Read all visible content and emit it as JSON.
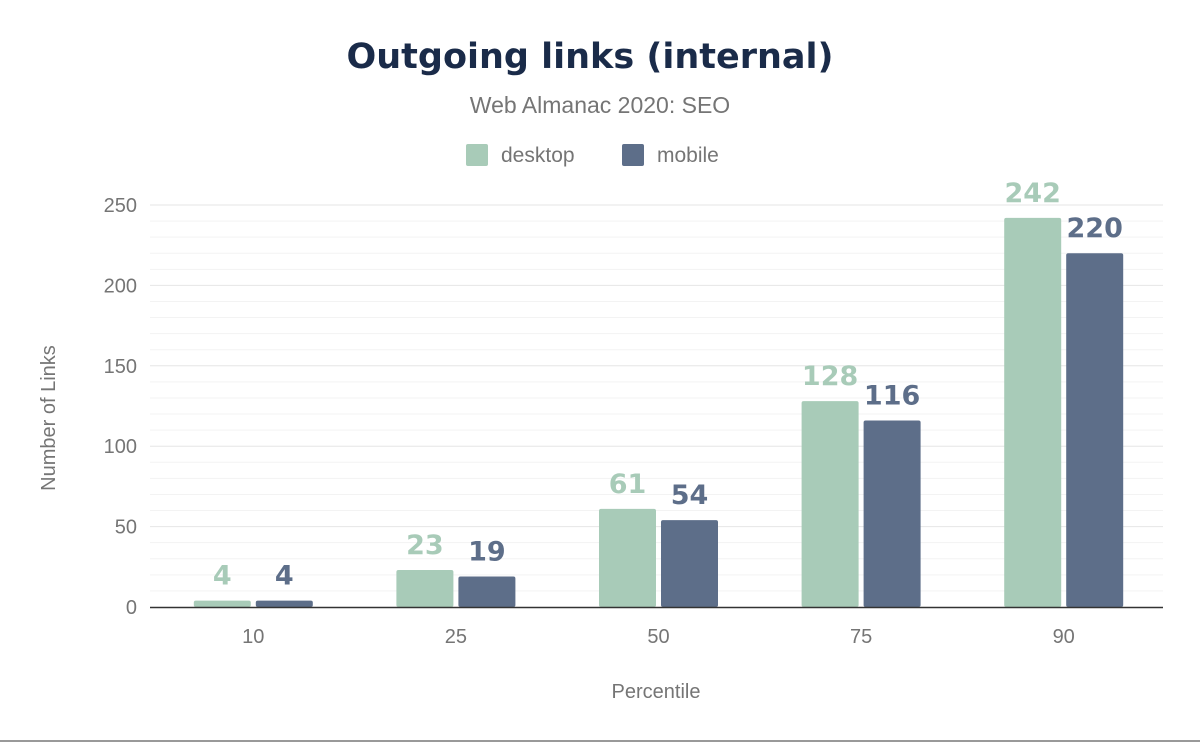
{
  "chart_data": {
    "type": "bar",
    "title": "Outgoing links (internal)",
    "subtitle": "Web Almanac 2020: SEO",
    "xlabel": "Percentile",
    "ylabel": "Number of Links",
    "categories": [
      "10",
      "25",
      "50",
      "75",
      "90"
    ],
    "series": [
      {
        "name": "desktop",
        "values": [
          4,
          23,
          61,
          128,
          242
        ],
        "color": "#a8cbb8"
      },
      {
        "name": "mobile",
        "values": [
          4,
          19,
          54,
          116,
          220
        ],
        "color": "#5d6e89"
      }
    ],
    "ylim": [
      0,
      250
    ],
    "yticks": [
      "0",
      "50",
      "100",
      "150",
      "200",
      "250"
    ],
    "grid": true,
    "legend": "top-center",
    "data_labels": true,
    "colors": {
      "title": "#1a2b49",
      "text": "#757575"
    }
  }
}
